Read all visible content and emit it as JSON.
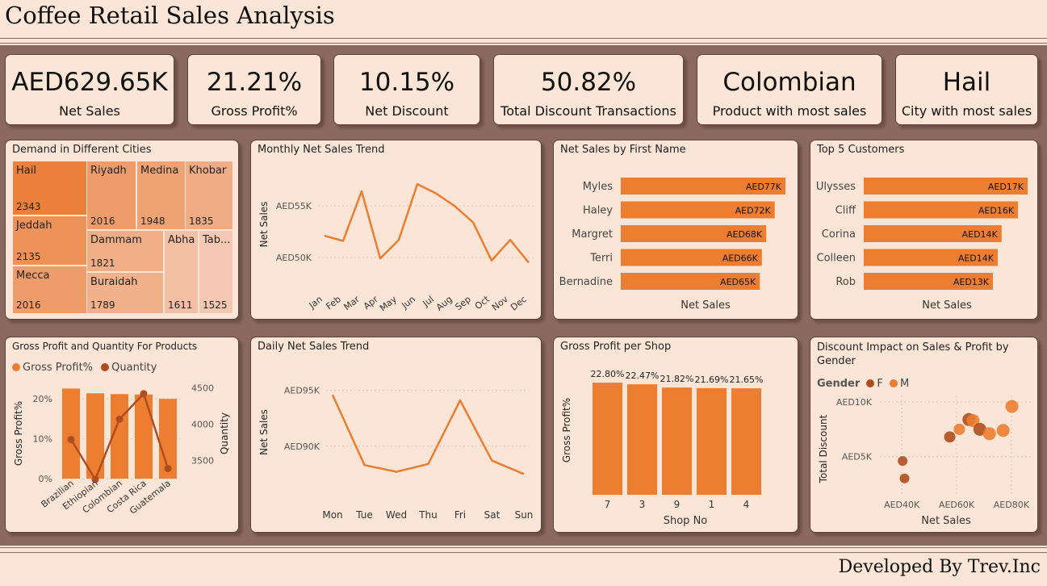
{
  "header": {
    "title": "Coffee Retail Sales Analysis"
  },
  "footer": {
    "text": "Developed By Trev.Inc"
  },
  "colors": {
    "accent": "#ed7d31",
    "dark_accent": "#b04d1f",
    "card_bg": "#fbe5d7",
    "band": "#8a6a60"
  },
  "kpis": [
    {
      "value": "AED629.65K",
      "label": "Net Sales"
    },
    {
      "value": "21.21%",
      "label": "Gross Profit%"
    },
    {
      "value": "10.15%",
      "label": "Net Discount"
    },
    {
      "value": "50.82%",
      "label": "Total Discount Transactions"
    },
    {
      "value": "Colombian",
      "label": "Product with most sales"
    },
    {
      "value": "Hail",
      "label": "City with most sales"
    }
  ],
  "chart_data": [
    {
      "type": "treemap",
      "title": "Demand in Different Cities",
      "cells": [
        {
          "name": "Hail",
          "label": "Hail",
          "value": 2343
        },
        {
          "name": "Jeddah",
          "label": "Jeddah",
          "value": 2135
        },
        {
          "name": "Mecca",
          "label": "Mecca",
          "value": 2016
        },
        {
          "name": "Riyadh",
          "label": "Riyadh",
          "value": 2016
        },
        {
          "name": "Medina",
          "label": "Medina",
          "value": 1948
        },
        {
          "name": "Khobar",
          "label": "Khobar",
          "value": 1835
        },
        {
          "name": "Dammam",
          "label": "Dammam",
          "value": 1821
        },
        {
          "name": "Buraidah",
          "label": "Buraidah",
          "value": 1789
        },
        {
          "name": "Abha",
          "label": "Abha",
          "value": 1611
        },
        {
          "name": "Tabuk",
          "label": "Tab...",
          "value": 1525
        }
      ]
    },
    {
      "type": "line",
      "title": "Monthly Net Sales Trend",
      "xlabel": "",
      "ylabel": "Net Sales",
      "x": [
        "Jan",
        "Feb",
        "Mar",
        "Apr",
        "May",
        "Jun",
        "Jul",
        "Aug",
        "Sep",
        "Oct",
        "Nov",
        "Dec"
      ],
      "values": [
        52100,
        51600,
        56400,
        49900,
        51700,
        57100,
        56200,
        55000,
        53400,
        49700,
        51700,
        49500
      ],
      "yticks": [
        50000,
        55000
      ],
      "ytick_labels": [
        "AED50K",
        "AED55K"
      ],
      "ylim": [
        48200,
        58200
      ]
    },
    {
      "type": "bar",
      "orientation": "horizontal",
      "title": "Net Sales by First Name",
      "xlabel": "Net Sales",
      "categories": [
        "Myles",
        "Haley",
        "Margret",
        "Terri",
        "Bernadine"
      ],
      "values": [
        77,
        72,
        68,
        66,
        65
      ],
      "data_labels": [
        "AED77K",
        "AED72K",
        "AED68K",
        "AED66K",
        "AED65K"
      ],
      "xlim": [
        0,
        77
      ]
    },
    {
      "type": "bar",
      "orientation": "horizontal",
      "title": "Top 5 Customers",
      "xlabel": "Net Sales",
      "categories": [
        "Ulysses",
        "Cliff",
        "Corina",
        "Colleen",
        "Rob"
      ],
      "values": [
        17,
        16,
        14.3,
        13.9,
        13.4
      ],
      "data_labels": [
        "AED17K",
        "AED16K",
        "AED14K",
        "AED14K",
        "AED13K"
      ],
      "xlim": [
        0,
        17
      ]
    },
    {
      "type": "bar-line-combo",
      "title": "Gross Profit and Quantity For Products",
      "legend": [
        "Gross Profit%",
        "Quantity"
      ],
      "categories": [
        "Brazilian",
        "Ethiopian",
        "Colombian",
        "Costa Rica",
        "Guatemala"
      ],
      "series": [
        {
          "name": "Gross Profit%",
          "values": [
            22.6,
            21.4,
            21.2,
            21.1,
            20
          ]
        },
        {
          "name": "Quantity",
          "values": [
            3790,
            3240,
            4070,
            4420,
            3390
          ]
        }
      ],
      "ylabel": "Gross Profit%",
      "ylabel2": "Quantity",
      "ylim": [
        0,
        25.3
      ],
      "ylim2": [
        3250,
        4640
      ],
      "yticks": [
        0,
        10,
        20
      ],
      "ytick_labels": [
        "0%",
        "10%",
        "20%"
      ],
      "yticks2": [
        3500,
        4000,
        4500
      ],
      "ytick2_labels": [
        "3500",
        "4000",
        "4500"
      ]
    },
    {
      "type": "line",
      "title": "Daily Net Sales Trend",
      "xlabel": "",
      "ylabel": "Net Sales",
      "x": [
        "Mon",
        "Tue",
        "Wed",
        "Thu",
        "Fri",
        "Sat",
        "Sun"
      ],
      "values": [
        94600,
        88300,
        87700,
        88400,
        94100,
        88700,
        87500
      ],
      "yticks": [
        90000,
        95000
      ],
      "ytick_labels": [
        "AED90K",
        "AED95K"
      ],
      "ylim": [
        86000,
        96500
      ]
    },
    {
      "type": "bar",
      "title": "Gross Profit per Shop",
      "xlabel": "Shop No",
      "ylabel": "Gross Profit%",
      "categories": [
        "7",
        "3",
        "9",
        "1",
        "4"
      ],
      "values": [
        22.8,
        22.47,
        21.82,
        21.69,
        21.65
      ],
      "data_labels": [
        "22.80%",
        "22.47%",
        "21.82%",
        "21.69%",
        "21.65%"
      ],
      "ylim": [
        0,
        23.8
      ]
    },
    {
      "type": "scatter",
      "title": "Discount Impact on Sales & Profit by Gender",
      "legend_title": "Gender",
      "legend": [
        "F",
        "M"
      ],
      "xlabel": "Net Sales",
      "ylabel": "Total Discount",
      "xticks": [
        40,
        60,
        80
      ],
      "xtick_labels": [
        "AED40K",
        "AED60K",
        "AED80K"
      ],
      "yticks": [
        5,
        10
      ],
      "ytick_labels": [
        "AED5K",
        "AED10K"
      ],
      "xlim": [
        32,
        88
      ],
      "ylim": [
        1.5,
        10.6
      ],
      "points": [
        {
          "x": 40.3,
          "y": 4.6,
          "gender": "F",
          "size": 6
        },
        {
          "x": 41.0,
          "y": 3.0,
          "gender": "F",
          "size": 6
        },
        {
          "x": 57.5,
          "y": 6.8,
          "gender": "F",
          "size": 7
        },
        {
          "x": 61.0,
          "y": 7.5,
          "gender": "M",
          "size": 7
        },
        {
          "x": 64.5,
          "y": 8.4,
          "gender": "F",
          "size": 8
        },
        {
          "x": 66.0,
          "y": 8.3,
          "gender": "M",
          "size": 8
        },
        {
          "x": 68.5,
          "y": 7.5,
          "gender": "F",
          "size": 8
        },
        {
          "x": 72.0,
          "y": 7.1,
          "gender": "M",
          "size": 8
        },
        {
          "x": 77.0,
          "y": 7.4,
          "gender": "M",
          "size": 8
        },
        {
          "x": 80.2,
          "y": 9.6,
          "gender": "M",
          "size": 8
        }
      ]
    }
  ]
}
